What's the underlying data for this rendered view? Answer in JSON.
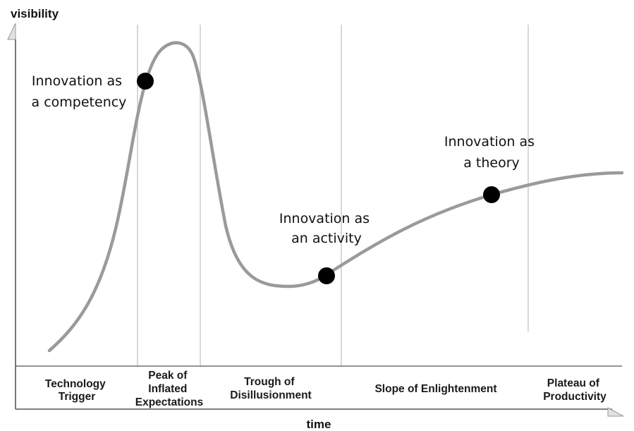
{
  "diagram": {
    "y_axis_label": "visibility",
    "x_axis_label": "time",
    "phases": [
      {
        "lines": [
          "Technology",
          "Trigger"
        ]
      },
      {
        "lines": [
          "Peak of",
          "Inflated",
          "Expectations"
        ]
      },
      {
        "lines": [
          "Trough of",
          "Disillusionment"
        ]
      },
      {
        "lines": [
          "Slope of Enlightenment"
        ]
      },
      {
        "lines": [
          "Plateau of",
          "Productivity"
        ]
      }
    ],
    "annotations": [
      {
        "lines": [
          "Innovation as",
          "a competency"
        ]
      },
      {
        "lines": [
          "Innovation as",
          "an activity"
        ]
      },
      {
        "lines": [
          "Innovation as",
          "a theory"
        ]
      }
    ],
    "colors": {
      "curve": "#9a9a9a",
      "axis": "#555555",
      "divider": "#cccccc",
      "marker": "#000000"
    }
  }
}
